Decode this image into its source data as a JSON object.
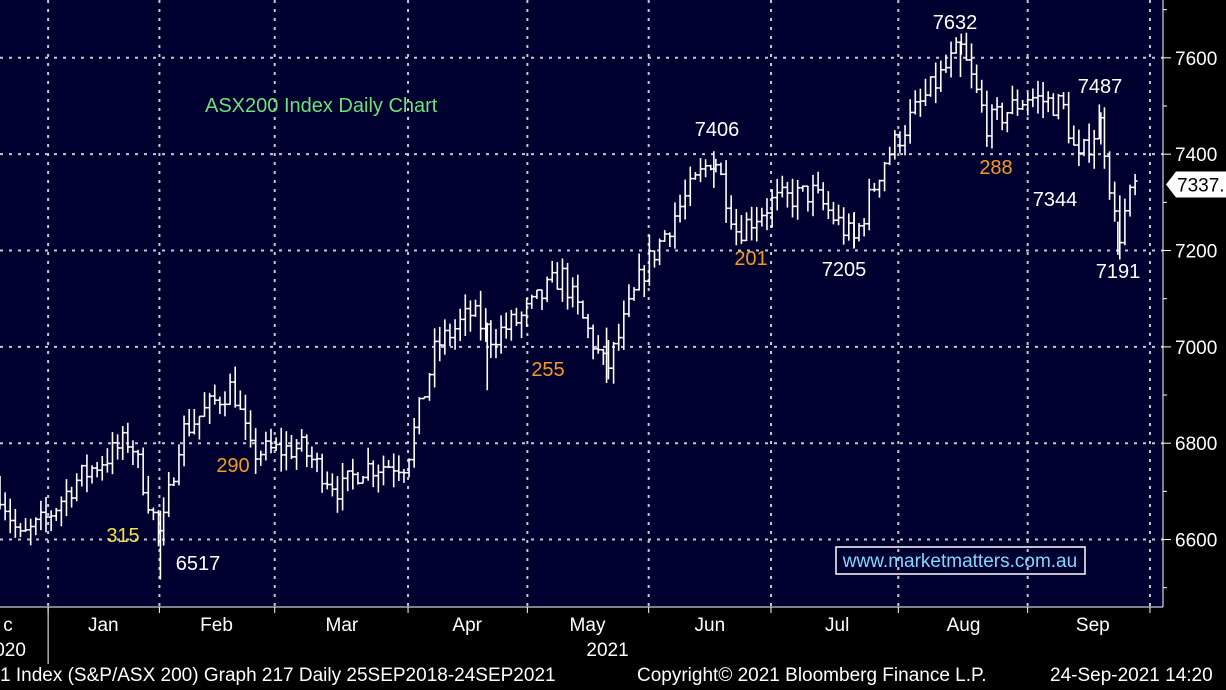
{
  "colors": {
    "background": "#000030",
    "axis_band": "#000000",
    "grid": "#c8c8c8",
    "bars": "#ffffff",
    "title": "#6ee07a",
    "label_white": "#ffffff",
    "label_orange": "#f59a23",
    "label_yellow": "#f2e14b",
    "watermark": "#7fd8ff"
  },
  "chart_data": {
    "type": "ohlc",
    "title": "ASX200 Index Daily Chart",
    "ylim": [
      6460,
      7720
    ],
    "yticks": [
      6600,
      6800,
      7000,
      7200,
      7400,
      7600
    ],
    "ytick_labels": [
      "6600",
      "6800",
      "7000",
      "7200",
      "7400",
      "7600"
    ],
    "xlim": [
      0,
      1160
    ],
    "month_labels": [
      "c",
      "Jan",
      "Feb",
      "Mar",
      "Apr",
      "May",
      "Jun",
      "Jul",
      "Aug",
      "Sep"
    ],
    "year_labels": [
      "020",
      "2021"
    ],
    "last_price_label": "7337.",
    "last_price": 7337,
    "watermark": "www.marketmatters.com.au",
    "annotations": [
      {
        "text": "7632",
        "kind": "price",
        "color": "white"
      },
      {
        "text": "7487",
        "kind": "price",
        "color": "white"
      },
      {
        "text": "7406",
        "kind": "price",
        "color": "white"
      },
      {
        "text": "7344",
        "kind": "price",
        "color": "white"
      },
      {
        "text": "7205",
        "kind": "price",
        "color": "white"
      },
      {
        "text": "7191",
        "kind": "price",
        "color": "white"
      },
      {
        "text": "6517",
        "kind": "price",
        "color": "white"
      },
      {
        "text": "315",
        "kind": "move",
        "color": "yellow"
      },
      {
        "text": "290",
        "kind": "move",
        "color": "orange"
      },
      {
        "text": "255",
        "kind": "move",
        "color": "orange"
      },
      {
        "text": "201",
        "kind": "move",
        "color": "orange"
      },
      {
        "text": "288",
        "kind": "move",
        "color": "orange"
      }
    ],
    "key_points": [
      {
        "t": 0,
        "v": 6700
      },
      {
        "t": 20,
        "v": 6600
      },
      {
        "t": 45,
        "v": 6640
      },
      {
        "t": 75,
        "v": 6720
      },
      {
        "t": 130,
        "v": 6810
      },
      {
        "t": 160,
        "v": 6600
      },
      {
        "t": 180,
        "v": 6820
      },
      {
        "t": 232,
        "v": 6920
      },
      {
        "t": 250,
        "v": 6780
      },
      {
        "t": 300,
        "v": 6790
      },
      {
        "t": 340,
        "v": 6700
      },
      {
        "t": 360,
        "v": 6750
      },
      {
        "t": 405,
        "v": 6760
      },
      {
        "t": 435,
        "v": 7000
      },
      {
        "t": 470,
        "v": 7070
      },
      {
        "t": 490,
        "v": 7020
      },
      {
        "t": 520,
        "v": 7060
      },
      {
        "t": 560,
        "v": 7150
      },
      {
        "t": 605,
        "v": 6950
      },
      {
        "t": 640,
        "v": 7150
      },
      {
        "t": 675,
        "v": 7280
      },
      {
        "t": 712,
        "v": 7400
      },
      {
        "t": 735,
        "v": 7240
      },
      {
        "t": 770,
        "v": 7300
      },
      {
        "t": 810,
        "v": 7320
      },
      {
        "t": 852,
        "v": 7220
      },
      {
        "t": 880,
        "v": 7380
      },
      {
        "t": 910,
        "v": 7480
      },
      {
        "t": 958,
        "v": 7620
      },
      {
        "t": 985,
        "v": 7460
      },
      {
        "t": 1025,
        "v": 7520
      },
      {
        "t": 1060,
        "v": 7500
      },
      {
        "t": 1075,
        "v": 7380
      },
      {
        "t": 1098,
        "v": 7470
      },
      {
        "t": 1115,
        "v": 7220
      },
      {
        "t": 1125,
        "v": 7300
      },
      {
        "t": 1133,
        "v": 7337
      }
    ]
  },
  "footer": {
    "left": "1 Index  (S&P/ASX 200)  Graph 217   Daily 25SEP2018-24SEP2021",
    "middle": "Copyright© 2021 Bloomberg Finance L.P.",
    "right": "24-Sep-2021 14:20"
  }
}
